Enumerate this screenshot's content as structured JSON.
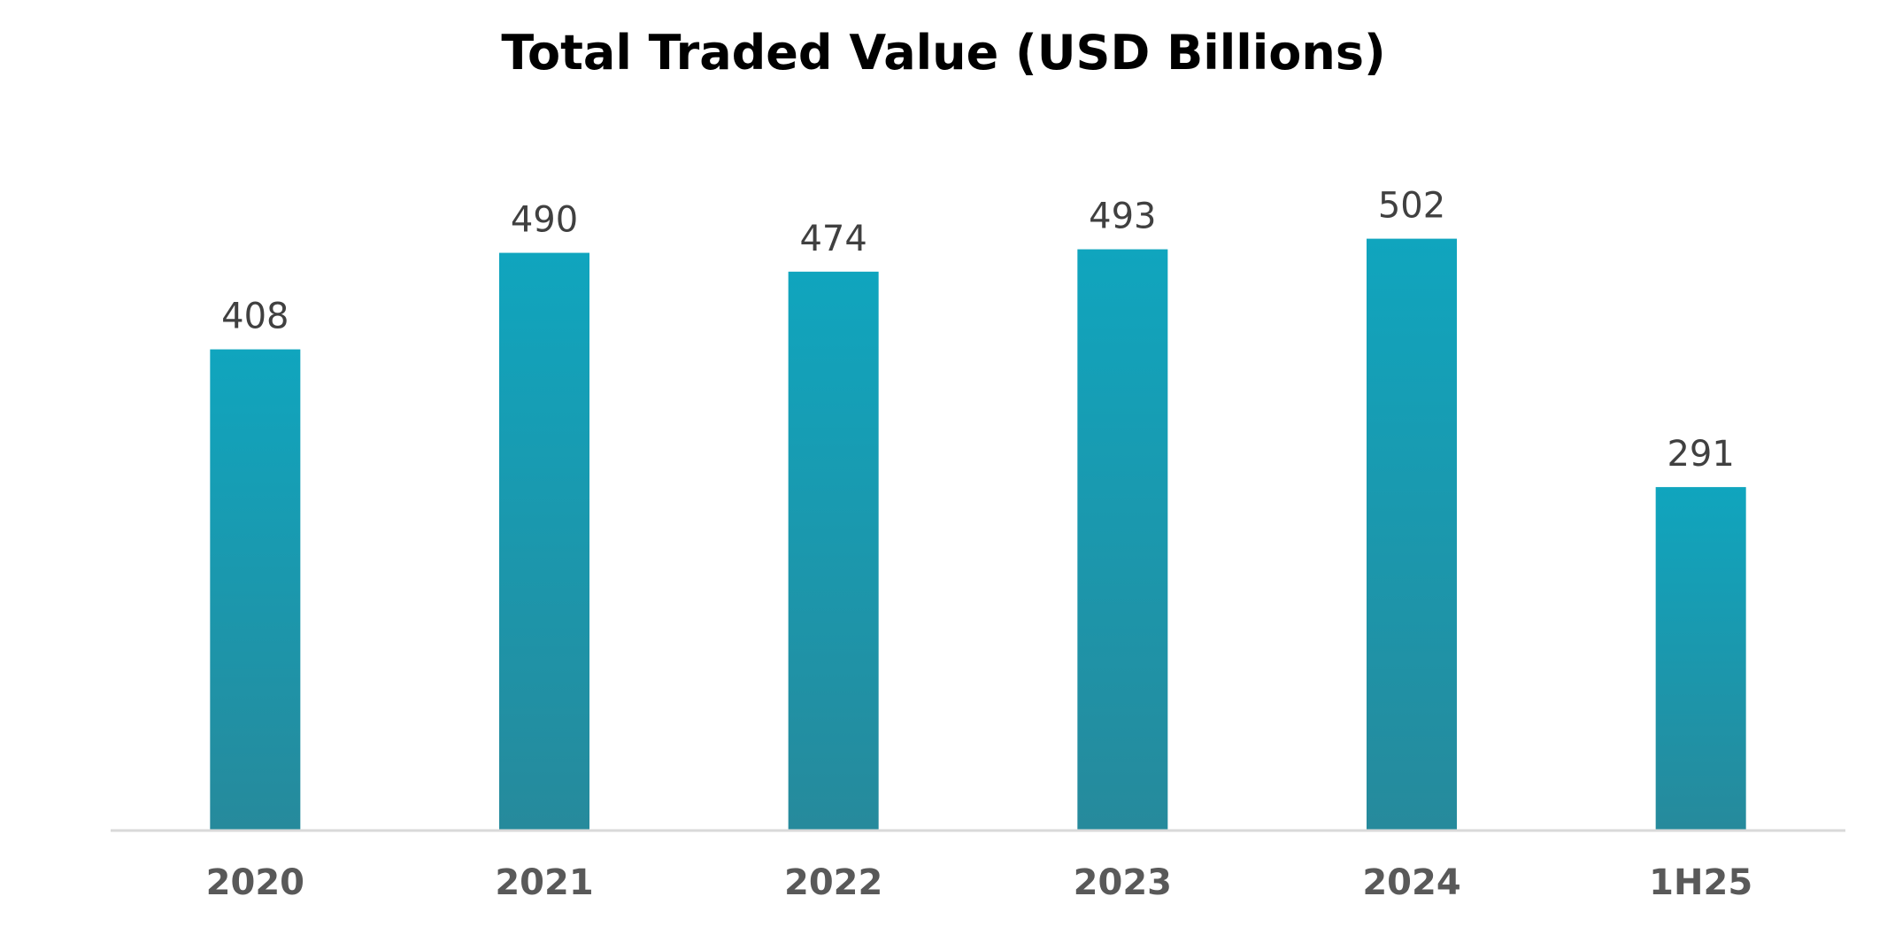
{
  "chart_data": {
    "type": "bar",
    "title": "Total Traded Value (USD Billions)",
    "xlabel": "",
    "ylabel": "",
    "categories": [
      "2020",
      "2021",
      "2022",
      "2023",
      "2024",
      "1H25"
    ],
    "values": [
      408,
      490,
      474,
      493,
      502,
      291
    ],
    "data_labels": [
      "408",
      "490",
      "474",
      "493",
      "502",
      "291"
    ],
    "ylim": [
      0,
      600
    ],
    "grid": false,
    "legend": "none",
    "y_axis_visible": false,
    "colors": {
      "bar_top": "#10A5BE",
      "bar_bottom": "#268A9C",
      "axis_line": "#D9D9D9",
      "value_label": "#404040",
      "tick_label": "#595959",
      "title": "#000000"
    }
  }
}
